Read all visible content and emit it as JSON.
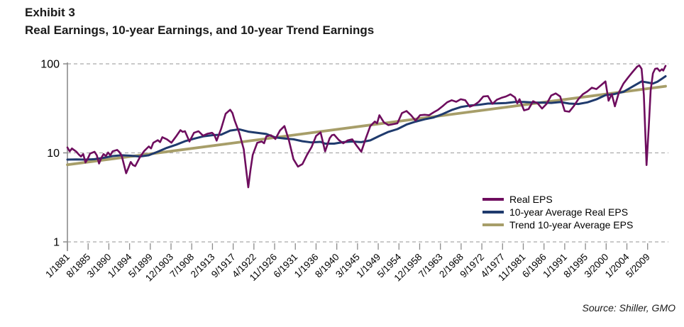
{
  "header": {
    "exhibit": "Exhibit 3",
    "title": "Real Earnings, 10-year Earnings, and 10-year Trend Earnings"
  },
  "footer": {
    "source": "Source: Shiller, GMO"
  },
  "colors": {
    "axis": "#8c8c8c",
    "grid": "#ababab",
    "text": "#000000"
  },
  "chart_data": {
    "type": "line",
    "title": "Real Earnings, 10-year Earnings, and 10-year Trend Earnings",
    "grid": "horizontal-dashed",
    "legend_position": "inside-right-bottom",
    "y_axis": {
      "scale": "log",
      "ticks": [
        1,
        10,
        100
      ],
      "range": [
        1,
        100
      ],
      "label": ""
    },
    "x_axis": {
      "domain": [
        1881.0,
        2013.3
      ],
      "tick_start_year": 1881.0,
      "tick_interval_years": 4.5833,
      "tick_labels": [
        "1/1881",
        "8/1885",
        "3/1890",
        "1/1894",
        "5/1899",
        "12/1903",
        "7/1908",
        "2/1913",
        "9/1917",
        "4/1922",
        "11/1926",
        "6/1931",
        "1/1936",
        "8/1940",
        "3/1945",
        "1/1949",
        "5/1954",
        "12/1958",
        "7/1963",
        "2/1968",
        "9/1972",
        "4/1977",
        "11/1981",
        "6/1986",
        "1/1991",
        "8/1995",
        "3/2000",
        "1/2004",
        "5/2009"
      ]
    },
    "series": [
      {
        "name": "Real EPS",
        "color": "#6E0D5E",
        "width": 2.6,
        "points": [
          [
            1881,
            11.5
          ],
          [
            1881.5,
            10.4
          ],
          [
            1882,
            11.2
          ],
          [
            1883,
            10.3
          ],
          [
            1883.5,
            9.6
          ],
          [
            1884,
            9.1
          ],
          [
            1884.5,
            9.7
          ],
          [
            1885,
            7.8
          ],
          [
            1885.5,
            8.6
          ],
          [
            1886,
            9.8
          ],
          [
            1887,
            10.3
          ],
          [
            1887.5,
            9.4
          ],
          [
            1888,
            7.6
          ],
          [
            1888.5,
            8.8
          ],
          [
            1889,
            9.7
          ],
          [
            1889.5,
            9.2
          ],
          [
            1890,
            10.1
          ],
          [
            1890.5,
            9.4
          ],
          [
            1891,
            10.4
          ],
          [
            1892,
            10.8
          ],
          [
            1892.5,
            10.2
          ],
          [
            1893,
            9.3
          ],
          [
            1894,
            5.9
          ],
          [
            1894.5,
            6.8
          ],
          [
            1895,
            7.9
          ],
          [
            1895.5,
            7.3
          ],
          [
            1896,
            7.1
          ],
          [
            1897,
            8.9
          ],
          [
            1898,
            10.5
          ],
          [
            1899,
            11.8
          ],
          [
            1899.5,
            11.2
          ],
          [
            1900,
            13.0
          ],
          [
            1901,
            13.9
          ],
          [
            1901.5,
            13.2
          ],
          [
            1902,
            15.0
          ],
          [
            1903,
            14.2
          ],
          [
            1904,
            13.0
          ],
          [
            1905,
            15.2
          ],
          [
            1906,
            18.0
          ],
          [
            1906.5,
            17.2
          ],
          [
            1907,
            17.5
          ],
          [
            1908,
            13.4
          ],
          [
            1909,
            16.8
          ],
          [
            1910,
            17.5
          ],
          [
            1911,
            15.6
          ],
          [
            1912,
            16.4
          ],
          [
            1913,
            16.8
          ],
          [
            1913.5,
            15.9
          ],
          [
            1914,
            13.7
          ],
          [
            1915,
            18.6
          ],
          [
            1916,
            27.5
          ],
          [
            1917,
            30.5
          ],
          [
            1917.5,
            28.0
          ],
          [
            1918,
            23.0
          ],
          [
            1919,
            16.9
          ],
          [
            1920,
            11.0
          ],
          [
            1921,
            4.1
          ],
          [
            1921.5,
            6.5
          ],
          [
            1922,
            9.5
          ],
          [
            1923,
            13.0
          ],
          [
            1924,
            13.4
          ],
          [
            1924.5,
            12.8
          ],
          [
            1925,
            15.3
          ],
          [
            1926,
            15.8
          ],
          [
            1926.5,
            15.2
          ],
          [
            1927,
            14.3
          ],
          [
            1928,
            17.8
          ],
          [
            1929,
            20.0
          ],
          [
            1930,
            13.8
          ],
          [
            1931,
            8.5
          ],
          [
            1932,
            7.0
          ],
          [
            1933,
            7.5
          ],
          [
            1934,
            9.5
          ],
          [
            1935,
            11.6
          ],
          [
            1936,
            15.5
          ],
          [
            1937,
            17.0
          ],
          [
            1938,
            10.4
          ],
          [
            1939,
            14.6
          ],
          [
            1939.5,
            15.8
          ],
          [
            1940,
            16.0
          ],
          [
            1941,
            14.0
          ],
          [
            1942,
            12.8
          ],
          [
            1943,
            13.8
          ],
          [
            1944,
            14.2
          ],
          [
            1945,
            12.0
          ],
          [
            1946,
            10.3
          ],
          [
            1947,
            14.5
          ],
          [
            1948,
            20.0
          ],
          [
            1949,
            22.5
          ],
          [
            1949.5,
            21.5
          ],
          [
            1950,
            26.5
          ],
          [
            1951,
            22.0
          ],
          [
            1952,
            20.5
          ],
          [
            1953,
            21.0
          ],
          [
            1954,
            21.5
          ],
          [
            1955,
            28.0
          ],
          [
            1956,
            29.5
          ],
          [
            1957,
            26.5
          ],
          [
            1958,
            23.0
          ],
          [
            1959,
            26.5
          ],
          [
            1960,
            26.8
          ],
          [
            1961,
            26.5
          ],
          [
            1962,
            28.5
          ],
          [
            1963,
            30.5
          ],
          [
            1964,
            33.5
          ],
          [
            1965,
            37.0
          ],
          [
            1966,
            39.0
          ],
          [
            1967,
            37.5
          ],
          [
            1968,
            40.0
          ],
          [
            1969,
            39.0
          ],
          [
            1970,
            33.0
          ],
          [
            1971,
            34.5
          ],
          [
            1972,
            37.5
          ],
          [
            1973,
            43.0
          ],
          [
            1974,
            43.5
          ],
          [
            1975,
            35.5
          ],
          [
            1976,
            39.5
          ],
          [
            1977,
            41.5
          ],
          [
            1978,
            43.0
          ],
          [
            1979,
            45.5
          ],
          [
            1980,
            42.0
          ],
          [
            1980.5,
            36.0
          ],
          [
            1981,
            40.0
          ],
          [
            1982,
            30.0
          ],
          [
            1983,
            31.0
          ],
          [
            1984,
            38.0
          ],
          [
            1985,
            36.0
          ],
          [
            1986,
            31.5
          ],
          [
            1987,
            35.5
          ],
          [
            1988,
            44.0
          ],
          [
            1989,
            46.5
          ],
          [
            1990,
            43.0
          ],
          [
            1991,
            29.5
          ],
          [
            1992,
            29.0
          ],
          [
            1993,
            33.5
          ],
          [
            1994,
            40.0
          ],
          [
            1995,
            45.5
          ],
          [
            1996,
            49.0
          ],
          [
            1997,
            54.0
          ],
          [
            1998,
            52.0
          ],
          [
            1999,
            57.5
          ],
          [
            2000,
            63.5
          ],
          [
            2000.7,
            38.5
          ],
          [
            2001.4,
            45.8
          ],
          [
            2002.1,
            33.3
          ],
          [
            2003,
            48.0
          ],
          [
            2004,
            60.0
          ],
          [
            2005,
            70.0
          ],
          [
            2006,
            81.0
          ],
          [
            2007,
            93.0
          ],
          [
            2007.5,
            96.0
          ],
          [
            2008,
            88.0
          ],
          [
            2008.5,
            45.0
          ],
          [
            2009.1,
            7.3
          ],
          [
            2009.6,
            20.0
          ],
          [
            2010,
            50.0
          ],
          [
            2010.5,
            78.0
          ],
          [
            2011,
            88.0
          ],
          [
            2011.5,
            89.0
          ],
          [
            2012,
            83.0
          ],
          [
            2012.5,
            87.0
          ],
          [
            2012.8,
            84.0
          ],
          [
            2013.3,
            95.0
          ]
        ]
      },
      {
        "name": "10-year Average Real EPS",
        "color": "#1F3A6D",
        "width": 3,
        "points": [
          [
            1881,
            8.4
          ],
          [
            1883,
            8.45
          ],
          [
            1885,
            8.4
          ],
          [
            1887,
            8.5
          ],
          [
            1889,
            8.8
          ],
          [
            1891,
            9.2
          ],
          [
            1893,
            9.4
          ],
          [
            1895,
            9.3
          ],
          [
            1897,
            9.1
          ],
          [
            1899,
            9.4
          ],
          [
            1901,
            10.3
          ],
          [
            1903,
            11.4
          ],
          [
            1905,
            12.3
          ],
          [
            1907,
            13.5
          ],
          [
            1909,
            14.4
          ],
          [
            1911,
            15.3
          ],
          [
            1913,
            15.8
          ],
          [
            1915,
            16.0
          ],
          [
            1917,
            17.8
          ],
          [
            1919,
            18.4
          ],
          [
            1921,
            17.3
          ],
          [
            1923,
            16.8
          ],
          [
            1925,
            16.3
          ],
          [
            1927,
            14.9
          ],
          [
            1929,
            14.5
          ],
          [
            1931,
            14.2
          ],
          [
            1933,
            13.5
          ],
          [
            1935,
            13.1
          ],
          [
            1937,
            13.3
          ],
          [
            1938,
            12.7
          ],
          [
            1940,
            12.7
          ],
          [
            1942,
            13.2
          ],
          [
            1944,
            13.4
          ],
          [
            1946,
            13.2
          ],
          [
            1948,
            13.8
          ],
          [
            1950,
            15.5
          ],
          [
            1952,
            17.2
          ],
          [
            1954,
            18.5
          ],
          [
            1956,
            20.8
          ],
          [
            1958,
            22.4
          ],
          [
            1960,
            23.8
          ],
          [
            1962,
            25.0
          ],
          [
            1964,
            27.3
          ],
          [
            1966,
            30.3
          ],
          [
            1968,
            32.7
          ],
          [
            1970,
            34.0
          ],
          [
            1972,
            34.6
          ],
          [
            1974,
            35.8
          ],
          [
            1976,
            35.9
          ],
          [
            1978,
            36.3
          ],
          [
            1980,
            37.3
          ],
          [
            1982,
            37.3
          ],
          [
            1984,
            36.8
          ],
          [
            1986,
            36.7
          ],
          [
            1988,
            36.4
          ],
          [
            1990,
            37.2
          ],
          [
            1992,
            35.8
          ],
          [
            1994,
            35.4
          ],
          [
            1996,
            36.9
          ],
          [
            1998,
            39.9
          ],
          [
            2000,
            44.5
          ],
          [
            2002,
            45.8
          ],
          [
            2004,
            48.5
          ],
          [
            2006,
            55.5
          ],
          [
            2008,
            63.5
          ],
          [
            2009.5,
            61.5
          ],
          [
            2010.5,
            60.0
          ],
          [
            2011.5,
            63.0
          ],
          [
            2012.5,
            68.0
          ],
          [
            2013.3,
            72.5
          ]
        ]
      },
      {
        "name": "Trend 10-year Average EPS",
        "color": "#A79E69",
        "width": 3.8,
        "points": [
          [
            1881,
            7.35
          ],
          [
            2013.3,
            56.0
          ]
        ]
      }
    ]
  }
}
